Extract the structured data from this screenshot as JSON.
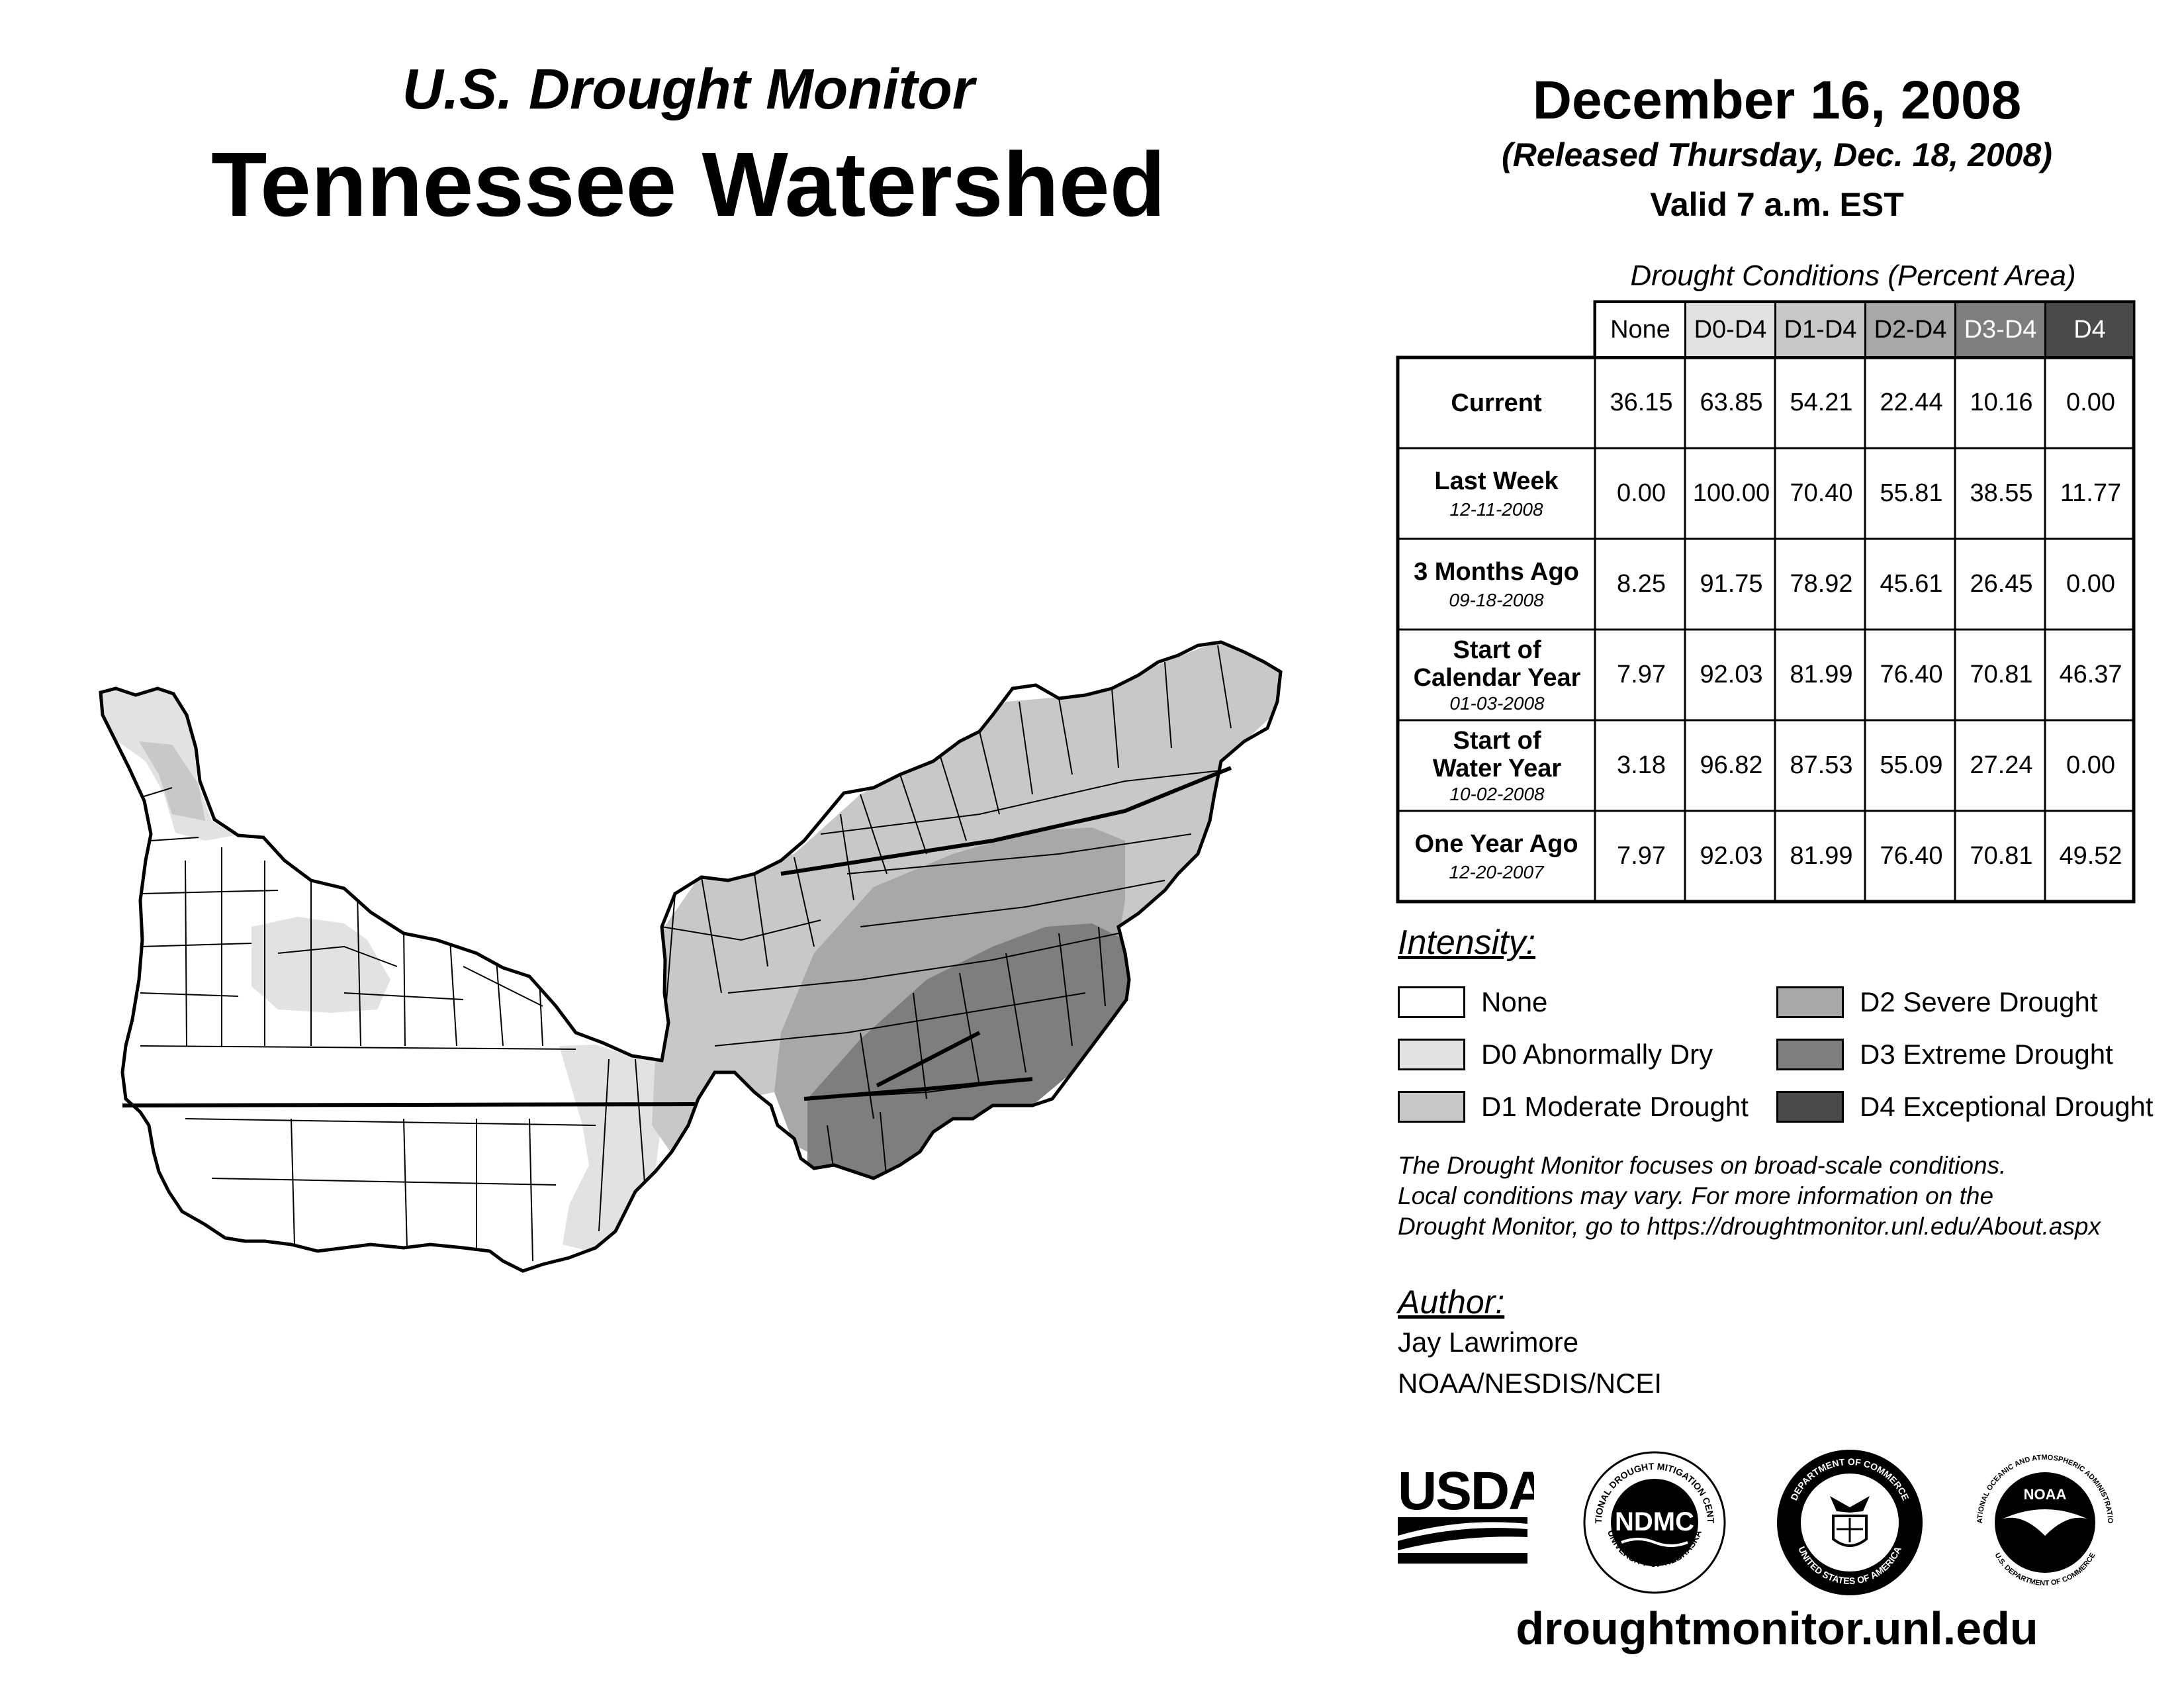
{
  "header": {
    "subtitle": "U.S. Drought Monitor",
    "title": "Tennessee Watershed",
    "date": "December 16, 2008",
    "released": "(Released Thursday, Dec. 18, 2008)",
    "valid": "Valid 7 a.m. EST"
  },
  "table": {
    "caption": "Drought Conditions (Percent Area)",
    "columns": [
      "None",
      "D0-D4",
      "D1-D4",
      "D2-D4",
      "D3-D4",
      "D4"
    ],
    "rows": [
      {
        "label": "Current",
        "date": "",
        "values": [
          "36.15",
          "63.85",
          "54.21",
          "22.44",
          "10.16",
          "0.00"
        ]
      },
      {
        "label": "Last Week",
        "date": "12-11-2008",
        "values": [
          "0.00",
          "100.00",
          "70.40",
          "55.81",
          "38.55",
          "11.77"
        ]
      },
      {
        "label": "3 Months Ago",
        "date": "09-18-2008",
        "values": [
          "8.25",
          "91.75",
          "78.92",
          "45.61",
          "26.45",
          "0.00"
        ]
      },
      {
        "label": "Start of Calendar Year",
        "date": "01-03-2008",
        "values": [
          "7.97",
          "92.03",
          "81.99",
          "76.40",
          "70.81",
          "46.37"
        ]
      },
      {
        "label": "Start of Water Year",
        "date": "10-02-2008",
        "values": [
          "3.18",
          "96.82",
          "87.53",
          "55.09",
          "27.24",
          "0.00"
        ]
      },
      {
        "label": "One Year Ago",
        "date": "12-20-2007",
        "values": [
          "7.97",
          "92.03",
          "81.99",
          "76.40",
          "70.81",
          "49.52"
        ]
      }
    ]
  },
  "legend": {
    "title": "Intensity:",
    "items": [
      {
        "label": "None",
        "color": "#ffffff"
      },
      {
        "label": "D0 Abnormally Dry",
        "color": "#e2e2e2"
      },
      {
        "label": "D1 Moderate Drought",
        "color": "#c8c8c8"
      },
      {
        "label": "D2 Severe Drought",
        "color": "#a8a8a8"
      },
      {
        "label": "D3 Extreme Drought",
        "color": "#7e7e7e"
      },
      {
        "label": "D4 Exceptional Drought",
        "color": "#4a4a4a"
      }
    ]
  },
  "note": [
    "The Drought Monitor focuses on broad-scale conditions.",
    "Local conditions may vary. For more information on the",
    "Drought Monitor, go to https://droughtmonitor.unl.edu/About.aspx"
  ],
  "author": {
    "heading": "Author:",
    "name": "Jay Lawrimore",
    "org": "NOAA/NESDIS/NCEI"
  },
  "logos": {
    "usda": "USDA",
    "ndmc": "NDMC",
    "ndmc_ring_top": "NATIONAL DROUGHT MITIGATION CENTER",
    "ndmc_ring_bottom": "UNIVERSITY OF NEBRASKA",
    "doc_ring_top": "DEPARTMENT OF COMMERCE",
    "doc_ring_bottom": "UNITED STATES OF AMERICA",
    "noaa": "NOAA",
    "noaa_ring_top": "NATIONAL OCEANIC AND ATMOSPHERIC ADMINISTRATION",
    "noaa_ring_bottom": "U.S. DEPARTMENT OF COMMERCE"
  },
  "footer": {
    "url": "droughtmonitor.unl.edu"
  }
}
